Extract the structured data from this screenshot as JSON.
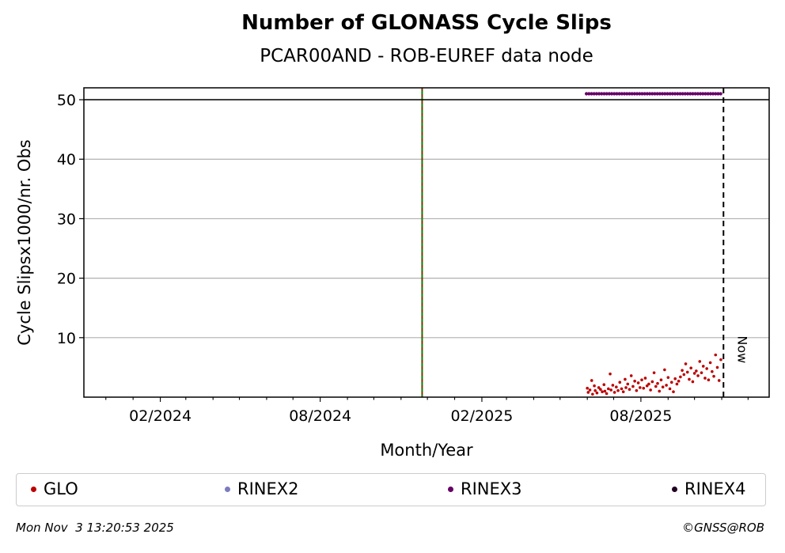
{
  "chart_data": {
    "type": "scatter",
    "title": "Number of GLONASS Cycle Slips",
    "subtitle": "PCAR00AND - ROB-EUREF data node",
    "xlabel": "Month/Year",
    "ylabel": "Cycle Slipsx1000/nr. Obs",
    "x_tick_labels": [
      "02/2024",
      "08/2024",
      "02/2025",
      "08/2025"
    ],
    "y_ticks": [
      10,
      20,
      30,
      40,
      50
    ],
    "ylim": [
      0,
      52
    ],
    "xlim": [
      "2023-11-06",
      "2025-12-25"
    ],
    "grid": "y",
    "reference_lines": [
      {
        "kind": "vertical",
        "date": "2024-11-25",
        "style": "solid-green-dashed-red"
      },
      {
        "kind": "vertical",
        "date": "2025-11-03",
        "style": "dashed-black",
        "label": "Now"
      },
      {
        "kind": "horizontal",
        "value": 50,
        "style": "solid-black"
      }
    ],
    "series": [
      {
        "name": "GLO",
        "color": "#bb0000",
        "points": [
          [
            "2025-06-01",
            1.5
          ],
          [
            "2025-06-02",
            0.8
          ],
          [
            "2025-06-04",
            1.2
          ],
          [
            "2025-06-06",
            2.8
          ],
          [
            "2025-06-07",
            0.5
          ],
          [
            "2025-06-09",
            1.9
          ],
          [
            "2025-06-10",
            1.1
          ],
          [
            "2025-06-12",
            0.7
          ],
          [
            "2025-06-14",
            1.6
          ],
          [
            "2025-06-16",
            1.3
          ],
          [
            "2025-06-18",
            0.9
          ],
          [
            "2025-06-20",
            2.1
          ],
          [
            "2025-06-21",
            1.0
          ],
          [
            "2025-06-23",
            0.6
          ],
          [
            "2025-06-25",
            1.4
          ],
          [
            "2025-06-27",
            3.9
          ],
          [
            "2025-06-28",
            1.2
          ],
          [
            "2025-06-30",
            2.0
          ],
          [
            "2025-07-02",
            0.8
          ],
          [
            "2025-07-04",
            1.7
          ],
          [
            "2025-07-06",
            1.1
          ],
          [
            "2025-07-08",
            2.5
          ],
          [
            "2025-07-10",
            1.4
          ],
          [
            "2025-07-12",
            0.9
          ],
          [
            "2025-07-14",
            3.0
          ],
          [
            "2025-07-15",
            1.6
          ],
          [
            "2025-07-17",
            2.2
          ],
          [
            "2025-07-19",
            1.3
          ],
          [
            "2025-07-21",
            3.6
          ],
          [
            "2025-07-23",
            1.8
          ],
          [
            "2025-07-25",
            2.7
          ],
          [
            "2025-07-27",
            1.1
          ],
          [
            "2025-07-29",
            2.4
          ],
          [
            "2025-07-31",
            1.6
          ],
          [
            "2025-08-02",
            2.9
          ],
          [
            "2025-08-04",
            1.5
          ],
          [
            "2025-08-06",
            3.2
          ],
          [
            "2025-08-08",
            1.9
          ],
          [
            "2025-08-10",
            2.2
          ],
          [
            "2025-08-12",
            1.2
          ],
          [
            "2025-08-14",
            2.6
          ],
          [
            "2025-08-16",
            4.1
          ],
          [
            "2025-08-18",
            1.8
          ],
          [
            "2025-08-20",
            2.3
          ],
          [
            "2025-08-22",
            1.0
          ],
          [
            "2025-08-24",
            2.9
          ],
          [
            "2025-08-26",
            1.7
          ],
          [
            "2025-08-28",
            4.6
          ],
          [
            "2025-08-30",
            2.0
          ],
          [
            "2025-09-01",
            3.3
          ],
          [
            "2025-09-03",
            1.4
          ],
          [
            "2025-09-05",
            2.5
          ],
          [
            "2025-09-07",
            0.9
          ],
          [
            "2025-09-09",
            3.1
          ],
          [
            "2025-09-11",
            2.2
          ],
          [
            "2025-09-13",
            2.7
          ],
          [
            "2025-09-15",
            3.4
          ],
          [
            "2025-09-17",
            4.5
          ],
          [
            "2025-09-19",
            3.8
          ],
          [
            "2025-09-21",
            5.6
          ],
          [
            "2025-09-23",
            4.2
          ],
          [
            "2025-09-25",
            3.0
          ],
          [
            "2025-09-27",
            4.9
          ],
          [
            "2025-09-29",
            2.6
          ],
          [
            "2025-10-01",
            4.0
          ],
          [
            "2025-10-03",
            4.4
          ],
          [
            "2025-10-05",
            3.6
          ],
          [
            "2025-10-07",
            6.0
          ],
          [
            "2025-10-09",
            4.1
          ],
          [
            "2025-10-11",
            5.2
          ],
          [
            "2025-10-13",
            3.2
          ],
          [
            "2025-10-15",
            4.8
          ],
          [
            "2025-10-17",
            2.9
          ],
          [
            "2025-10-19",
            5.8
          ],
          [
            "2025-10-21",
            4.3
          ],
          [
            "2025-10-23",
            3.5
          ],
          [
            "2025-10-25",
            7.1
          ],
          [
            "2025-10-27",
            5.0
          ],
          [
            "2025-10-29",
            2.8
          ],
          [
            "2025-10-31",
            6.3
          ]
        ]
      },
      {
        "name": "RINEX2",
        "color": "#7b7bc0",
        "points": []
      },
      {
        "name": "RINEX3",
        "color": "#660066",
        "points": [
          [
            "2025-05-31",
            51
          ],
          [
            "2025-10-31",
            51
          ]
        ]
      },
      {
        "name": "RINEX4",
        "color": "#220022",
        "points": []
      }
    ]
  },
  "legend": {
    "items": [
      {
        "label": "GLO",
        "color": "#bb0000"
      },
      {
        "label": "RINEX2",
        "color": "#7b7bc0"
      },
      {
        "label": "RINEX3",
        "color": "#660066"
      },
      {
        "label": "RINEX4",
        "color": "#220022"
      }
    ]
  },
  "footer": {
    "timestamp": "Mon Nov  3 13:20:53 2025",
    "credit": "©GNSS@ROB"
  }
}
